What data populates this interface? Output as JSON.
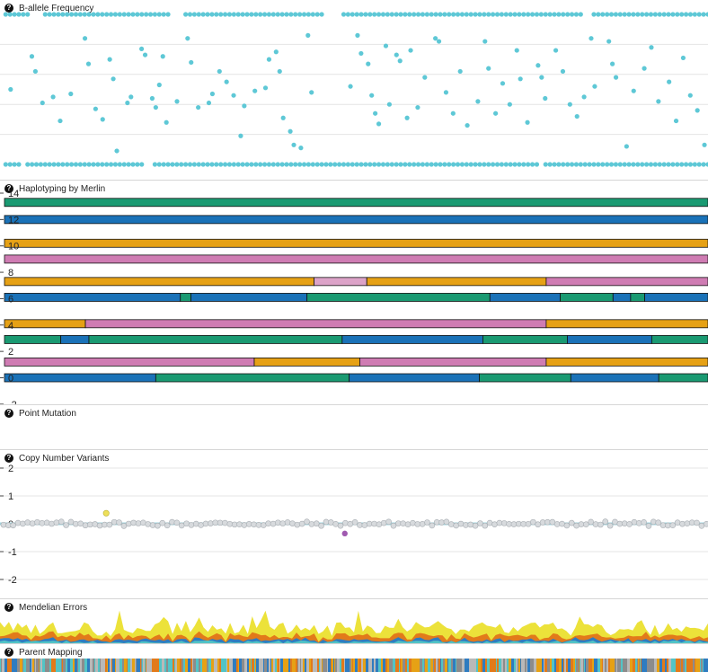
{
  "panels": {
    "baf": {
      "title": "B-allele Frequency"
    },
    "haplotype": {
      "title": "Haplotyping by Merlin"
    },
    "point_mutation": {
      "title": "Point Mutation"
    },
    "cnv": {
      "title": "Copy Number Variants"
    },
    "mendelian": {
      "title": "Mendelian Errors"
    },
    "parent_mapping": {
      "title": "Parent Mapping"
    }
  },
  "colors": {
    "baf_point": "#5ec8d6",
    "green": "#1a9a72",
    "blue": "#1a72b8",
    "orange": "#e6a115",
    "pink": "#cf7cb3",
    "light_pink": "#dca3c8",
    "cnv_point": "#d7dadd",
    "cnv_line": "#9fd6e0",
    "cnv_gain": "#eee05a",
    "cnv_loss": "#a05ab0",
    "me_yellow": "#ece23a",
    "me_orange": "#e27a1a",
    "me_blue": "#2f7cc0",
    "me_teal": "#52c4c6"
  },
  "chart_data": [
    {
      "id": "baf",
      "type": "scatter",
      "title": "B-allele Frequency",
      "xlabel": "",
      "ylabel": "",
      "ylim": [
        0,
        1
      ],
      "grid": true,
      "note": "genome position axis is unlabeled; values are estimated 0–1",
      "band_y": [
        1.0,
        0.0
      ],
      "mid_points": [
        [
          0.015,
          0.5
        ],
        [
          0.045,
          0.72
        ],
        [
          0.05,
          0.62
        ],
        [
          0.06,
          0.41
        ],
        [
          0.075,
          0.45
        ],
        [
          0.085,
          0.29
        ],
        [
          0.1,
          0.47
        ],
        [
          0.12,
          0.84
        ],
        [
          0.125,
          0.67
        ],
        [
          0.135,
          0.37
        ],
        [
          0.145,
          0.3
        ],
        [
          0.155,
          0.7
        ],
        [
          0.16,
          0.57
        ],
        [
          0.165,
          0.09
        ],
        [
          0.18,
          0.41
        ],
        [
          0.185,
          0.45
        ],
        [
          0.2,
          0.77
        ],
        [
          0.205,
          0.73
        ],
        [
          0.215,
          0.44
        ],
        [
          0.22,
          0.38
        ],
        [
          0.225,
          0.53
        ],
        [
          0.23,
          0.72
        ],
        [
          0.235,
          0.28
        ],
        [
          0.25,
          0.42
        ],
        [
          0.265,
          0.84
        ],
        [
          0.27,
          0.68
        ],
        [
          0.28,
          0.38
        ],
        [
          0.295,
          0.41
        ],
        [
          0.3,
          0.47
        ],
        [
          0.31,
          0.62
        ],
        [
          0.32,
          0.55
        ],
        [
          0.33,
          0.46
        ],
        [
          0.34,
          0.19
        ],
        [
          0.345,
          0.39
        ],
        [
          0.36,
          0.49
        ],
        [
          0.375,
          0.51
        ],
        [
          0.38,
          0.7
        ],
        [
          0.39,
          0.75
        ],
        [
          0.395,
          0.62
        ],
        [
          0.4,
          0.31
        ],
        [
          0.41,
          0.22
        ],
        [
          0.415,
          0.13
        ],
        [
          0.425,
          0.11
        ],
        [
          0.435,
          0.86
        ],
        [
          0.44,
          0.48
        ],
        [
          0.495,
          0.52
        ],
        [
          0.505,
          0.86
        ],
        [
          0.51,
          0.74
        ],
        [
          0.52,
          0.67
        ],
        [
          0.525,
          0.46
        ],
        [
          0.53,
          0.34
        ],
        [
          0.535,
          0.27
        ],
        [
          0.545,
          0.79
        ],
        [
          0.55,
          0.4
        ],
        [
          0.56,
          0.73
        ],
        [
          0.565,
          0.69
        ],
        [
          0.575,
          0.31
        ],
        [
          0.58,
          0.76
        ],
        [
          0.59,
          0.38
        ],
        [
          0.6,
          0.58
        ],
        [
          0.615,
          0.84
        ],
        [
          0.62,
          0.82
        ],
        [
          0.63,
          0.48
        ],
        [
          0.64,
          0.34
        ],
        [
          0.65,
          0.62
        ],
        [
          0.66,
          0.26
        ],
        [
          0.675,
          0.42
        ],
        [
          0.685,
          0.82
        ],
        [
          0.69,
          0.64
        ],
        [
          0.7,
          0.34
        ],
        [
          0.71,
          0.54
        ],
        [
          0.72,
          0.4
        ],
        [
          0.73,
          0.76
        ],
        [
          0.735,
          0.57
        ],
        [
          0.745,
          0.28
        ],
        [
          0.76,
          0.66
        ],
        [
          0.765,
          0.58
        ],
        [
          0.77,
          0.44
        ],
        [
          0.785,
          0.76
        ],
        [
          0.795,
          0.62
        ],
        [
          0.805,
          0.4
        ],
        [
          0.815,
          0.32
        ],
        [
          0.825,
          0.45
        ],
        [
          0.835,
          0.84
        ],
        [
          0.84,
          0.52
        ],
        [
          0.86,
          0.82
        ],
        [
          0.865,
          0.67
        ],
        [
          0.87,
          0.58
        ],
        [
          0.885,
          0.12
        ],
        [
          0.895,
          0.49
        ],
        [
          0.91,
          0.64
        ],
        [
          0.92,
          0.78
        ],
        [
          0.93,
          0.42
        ],
        [
          0.945,
          0.55
        ],
        [
          0.955,
          0.29
        ],
        [
          0.965,
          0.71
        ],
        [
          0.975,
          0.46
        ],
        [
          0.985,
          0.36
        ],
        [
          0.995,
          0.13
        ]
      ]
    },
    {
      "id": "haplotype",
      "type": "bar",
      "title": "Haplotyping by Merlin",
      "xlabel": "",
      "ylabel": "",
      "ylim": [
        -2,
        14
      ],
      "yticks": [
        "14",
        "12",
        "10",
        "8",
        "6",
        "4",
        "2",
        "0",
        "-2"
      ],
      "tracks": [
        {
          "y": 13.3,
          "segments": [
            [
              0,
              1,
              "green"
            ]
          ]
        },
        {
          "y": 12.0,
          "segments": [
            [
              0,
              1,
              "blue"
            ]
          ]
        },
        {
          "y": 10.2,
          "segments": [
            [
              0,
              1,
              "orange"
            ]
          ]
        },
        {
          "y": 9.0,
          "segments": [
            [
              0,
              1,
              "pink"
            ]
          ]
        },
        {
          "y": 7.3,
          "segments": [
            [
              0,
              0.44,
              "orange"
            ],
            [
              0.44,
              0.515,
              "light_pink"
            ],
            [
              0.515,
              0.77,
              "orange"
            ],
            [
              0.77,
              1,
              "pink"
            ]
          ]
        },
        {
          "y": 6.1,
          "segments": [
            [
              0,
              0.25,
              "blue"
            ],
            [
              0.25,
              0.265,
              "green"
            ],
            [
              0.265,
              0.43,
              "blue"
            ],
            [
              0.43,
              0.69,
              "green"
            ],
            [
              0.69,
              0.79,
              "blue"
            ],
            [
              0.79,
              0.865,
              "green"
            ],
            [
              0.865,
              0.89,
              "blue"
            ],
            [
              0.89,
              0.91,
              "green"
            ],
            [
              0.91,
              1,
              "blue"
            ]
          ]
        },
        {
          "y": 4.1,
          "segments": [
            [
              0,
              0.115,
              "orange"
            ],
            [
              0.115,
              0.77,
              "pink"
            ],
            [
              0.77,
              1,
              "orange"
            ]
          ]
        },
        {
          "y": 2.9,
          "segments": [
            [
              0,
              0.08,
              "green"
            ],
            [
              0.08,
              0.12,
              "blue"
            ],
            [
              0.12,
              0.48,
              "green"
            ],
            [
              0.48,
              0.68,
              "blue"
            ],
            [
              0.68,
              0.8,
              "green"
            ],
            [
              0.8,
              0.92,
              "blue"
            ],
            [
              0.92,
              1,
              "green"
            ]
          ]
        },
        {
          "y": 1.2,
          "segments": [
            [
              0,
              0.355,
              "pink"
            ],
            [
              0.355,
              0.505,
              "orange"
            ],
            [
              0.505,
              0.77,
              "pink"
            ],
            [
              0.77,
              1,
              "orange"
            ]
          ]
        },
        {
          "y": 0.0,
          "segments": [
            [
              0,
              0.215,
              "blue"
            ],
            [
              0.215,
              0.49,
              "green"
            ],
            [
              0.49,
              0.675,
              "blue"
            ],
            [
              0.675,
              0.805,
              "green"
            ],
            [
              0.805,
              0.93,
              "blue"
            ],
            [
              0.93,
              1,
              "green"
            ]
          ]
        }
      ]
    },
    {
      "id": "cnv",
      "type": "scatter",
      "title": "Copy Number Variants",
      "xlabel": "",
      "ylabel": "",
      "ylim": [
        -2,
        2
      ],
      "yticks": [
        "2",
        "1",
        "0",
        "-1",
        "-2"
      ],
      "grid": true,
      "gain": [
        {
          "x": 0.15,
          "y": 0.38
        }
      ],
      "loss": [
        {
          "x": 0.487,
          "y": -0.35
        }
      ]
    },
    {
      "id": "mendelian",
      "type": "area",
      "title": "Mendelian Errors",
      "xlabel": "",
      "ylabel": "",
      "series": []
    },
    {
      "id": "parent_mapping",
      "type": "heatmap",
      "title": "Parent Mapping",
      "xlabel": "",
      "ylabel": ""
    }
  ]
}
